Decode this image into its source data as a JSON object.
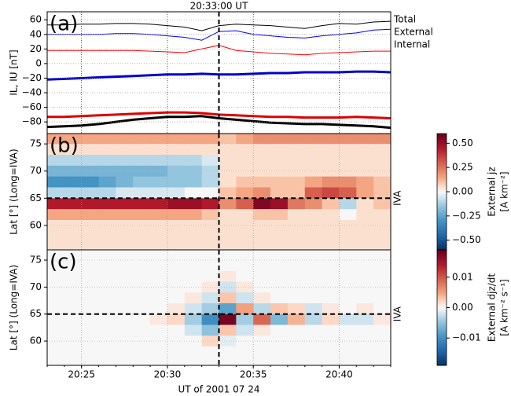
{
  "chart_data": [
    {
      "type": "line",
      "panel_label": "(a)",
      "ylabel": "IL, IU [nT]",
      "vline_label": "20:33:00 UT",
      "vline_x": "20:33:00",
      "xlim": [
        "20:23",
        "20:43"
      ],
      "xticks": [
        "20:25",
        "20:30",
        "20:35",
        "20:40"
      ],
      "show_xtick_labels": false,
      "ylim": [
        -96,
        71
      ],
      "yticks": [
        {
          "value": -80,
          "label": "−80"
        },
        {
          "value": -60,
          "label": "−60"
        },
        {
          "value": -40,
          "label": "−40"
        },
        {
          "value": -20,
          "label": "−20"
        },
        0,
        20,
        40,
        60
      ],
      "grid": true,
      "x": [
        "20:23",
        "20:24",
        "20:25",
        "20:26",
        "20:27",
        "20:28",
        "20:29",
        "20:30",
        "20:31",
        "20:32",
        "20:33",
        "20:34",
        "20:35",
        "20:36",
        "20:37",
        "20:38",
        "20:39",
        "20:40",
        "20:41",
        "20:42",
        "20:43"
      ],
      "series": [
        {
          "name": "Total",
          "color": "#000000",
          "width": 1,
          "values": [
            53,
            53,
            54,
            54,
            55,
            55,
            54,
            52,
            50,
            45,
            52,
            54,
            53,
            52,
            50,
            48,
            52,
            55,
            54,
            57,
            58
          ]
        },
        {
          "name": "External",
          "color": "#0000ff",
          "width": 1,
          "values": [
            40,
            40,
            40,
            40,
            41,
            41,
            40,
            38,
            36,
            32,
            44,
            45,
            40,
            38,
            36,
            35,
            38,
            40,
            42,
            46,
            47
          ]
        },
        {
          "name": "Internal",
          "color": "#ff0000",
          "width": 1,
          "values": [
            18,
            18,
            18,
            18,
            18,
            18,
            17,
            16,
            15,
            20,
            25,
            18,
            16,
            14,
            13,
            12,
            14,
            15,
            16,
            17,
            17
          ]
        },
        {
          "color": "#0000cc",
          "width": 3,
          "values": [
            -22,
            -21,
            -20,
            -19,
            -18,
            -17,
            -16,
            -15,
            -15,
            -14,
            -15,
            -15,
            -14,
            -13,
            -13,
            -12,
            -12,
            -12,
            -11,
            -11,
            -12
          ]
        },
        {
          "color": "#dd0000",
          "width": 3,
          "values": [
            -73,
            -73,
            -72,
            -71,
            -70,
            -69,
            -68,
            -67,
            -67,
            -68,
            -70,
            -71,
            -72,
            -73,
            -73,
            -74,
            -74,
            -74,
            -73,
            -74,
            -75
          ]
        },
        {
          "color": "#000000",
          "width": 3,
          "values": [
            -87,
            -86,
            -85,
            -83,
            -80,
            -77,
            -75,
            -73,
            -73,
            -72,
            -75,
            -77,
            -79,
            -81,
            -82,
            -83,
            -83,
            -84,
            -85,
            -86,
            -88
          ]
        }
      ]
    },
    {
      "type": "heatmap",
      "panel_label": "(b)",
      "ylabel": "Lat [°] (Long=IVA)",
      "vline_x": "20:33:00",
      "hline": {
        "label": "IVA",
        "y": 65
      },
      "xlim": [
        "20:23",
        "20:43"
      ],
      "xticks": [
        "20:25",
        "20:30",
        "20:35",
        "20:40"
      ],
      "show_xtick_labels": false,
      "ylim": [
        55.5,
        76.9
      ],
      "yticks": [
        60,
        65,
        70,
        75
      ],
      "grid": true,
      "colormap": "RdBu_r",
      "x": [
        "20:23",
        "20:24",
        "20:25",
        "20:26",
        "20:27",
        "20:28",
        "20:29",
        "20:30",
        "20:31",
        "20:32",
        "20:33",
        "20:34",
        "20:35",
        "20:36",
        "20:37",
        "20:38",
        "20:39",
        "20:40",
        "20:41",
        "20:42"
      ],
      "y": [
        76,
        74,
        72,
        70,
        68,
        66,
        64,
        62,
        60,
        58,
        56
      ],
      "z": [
        [
          0.15,
          0.15,
          0.15,
          0.15,
          0.15,
          0.15,
          0.15,
          0.15,
          0.15,
          0.15,
          0.1,
          0.15,
          0.2,
          0.2,
          0.2,
          0.2,
          0.2,
          0.2,
          0.2,
          0.2
        ],
        [
          0.05,
          0.05,
          0.05,
          0.05,
          0.05,
          0.05,
          0.05,
          0.05,
          0.05,
          0.05,
          0.05,
          0.05,
          0.05,
          0.05,
          0.05,
          0.05,
          0.05,
          0.05,
          0.05,
          0.05
        ],
        [
          -0.1,
          -0.1,
          -0.1,
          -0.1,
          -0.1,
          -0.1,
          -0.1,
          -0.1,
          -0.1,
          -0.05,
          0.05,
          0.05,
          0.05,
          0.05,
          0.05,
          0.05,
          0.05,
          0.05,
          0.05,
          0.05
        ],
        [
          -0.2,
          -0.2,
          -0.2,
          -0.2,
          -0.2,
          -0.2,
          -0.2,
          -0.15,
          -0.15,
          -0.1,
          0.05,
          0.05,
          0.05,
          0.05,
          0.05,
          0.05,
          0.05,
          0.05,
          0.05,
          0.05
        ],
        [
          -0.3,
          -0.3,
          -0.3,
          -0.25,
          -0.2,
          -0.15,
          -0.15,
          -0.15,
          -0.15,
          -0.1,
          0.05,
          0.1,
          0.1,
          0.1,
          0.1,
          0.15,
          0.2,
          0.2,
          0.15,
          0.1
        ],
        [
          -0.1,
          -0.1,
          -0.1,
          -0.1,
          -0.05,
          -0.05,
          -0.05,
          -0.05,
          0,
          0,
          0.1,
          0.15,
          0.2,
          0.1,
          0.1,
          0.3,
          0.35,
          0.3,
          0.15,
          0.1
        ],
        [
          0.45,
          0.45,
          0.45,
          0.45,
          0.45,
          0.45,
          0.45,
          0.5,
          0.5,
          0.45,
          0.2,
          0.3,
          0.55,
          0.5,
          0.25,
          0.2,
          0.1,
          -0.1,
          0.05,
          0.1
        ],
        [
          0.15,
          0.15,
          0.15,
          0.15,
          0.15,
          0.15,
          0.15,
          0.15,
          0.15,
          0.1,
          0.05,
          0.05,
          0.1,
          0.1,
          0.05,
          0.05,
          0.05,
          0,
          0.05,
          0.05
        ],
        [
          0.05,
          0.05,
          0.05,
          0.05,
          0.05,
          0.05,
          0.05,
          0.05,
          0.05,
          0.05,
          0.05,
          0.05,
          0.05,
          0.05,
          0.05,
          0.05,
          0.05,
          0.05,
          0.05,
          0.05
        ],
        [
          0.05,
          0.05,
          0.05,
          0.05,
          0.05,
          0.05,
          0.05,
          0.05,
          0.05,
          0.05,
          0.05,
          0.05,
          0.05,
          0.05,
          0.05,
          0.05,
          0.05,
          0.05,
          0.05,
          0.05
        ],
        [
          0.05,
          0.05,
          0.05,
          0.05,
          0.05,
          0.05,
          0.05,
          0.05,
          0.05,
          0.05,
          0.05,
          0.05,
          0.05,
          0.05,
          0.05,
          0.05,
          0.05,
          0.05,
          0.05,
          0.05
        ]
      ],
      "zlim": [
        -0.6,
        0.6
      ],
      "zticks": [
        {
          "value": 0.5,
          "label": "0.50"
        },
        {
          "value": 0.25,
          "label": "0.25"
        },
        {
          "value": 0,
          "label": "0.00"
        },
        {
          "value": -0.25,
          "label": "−0.25"
        },
        {
          "value": -0.5,
          "label": "−0.50"
        }
      ],
      "colorbar_label": [
        "External jz",
        "[A km⁻²]"
      ]
    },
    {
      "type": "heatmap",
      "panel_label": "(c)",
      "ylabel": "Lat [°] (Long=IVA)",
      "xlabel": "UT of 2001 07 24",
      "vline_x": "20:33:00",
      "hline": {
        "label": "IVA",
        "y": 65
      },
      "xlim": [
        "20:23",
        "20:43"
      ],
      "xticks": [
        "20:25",
        "20:30",
        "20:35",
        "20:40"
      ],
      "show_xtick_labels": true,
      "ylim": [
        55.5,
        76.9
      ],
      "yticks": [
        60,
        65,
        70,
        75
      ],
      "grid": true,
      "colormap": "RdBu_r",
      "x": [
        "20:23",
        "20:24",
        "20:25",
        "20:26",
        "20:27",
        "20:28",
        "20:29",
        "20:30",
        "20:31",
        "20:32",
        "20:33",
        "20:34",
        "20:35",
        "20:36",
        "20:37",
        "20:38",
        "20:39",
        "20:40",
        "20:41",
        "20:42"
      ],
      "y": [
        76,
        74,
        72,
        70,
        68,
        66,
        64,
        62,
        60,
        58,
        56
      ],
      "z": [
        [
          0,
          0,
          0,
          0,
          0,
          0,
          0,
          0,
          0,
          0,
          0,
          0,
          0,
          0,
          0,
          0,
          0,
          0,
          0,
          0
        ],
        [
          0,
          0,
          0,
          0,
          0,
          0,
          0,
          0,
          0,
          0,
          0,
          0,
          0,
          0,
          0,
          0,
          0,
          0,
          0,
          0
        ],
        [
          0,
          0,
          0,
          0,
          0,
          0,
          0,
          0,
          0,
          0,
          0.001,
          0,
          0,
          0,
          0,
          0,
          0,
          0,
          0,
          0
        ],
        [
          0,
          0,
          0,
          0,
          0,
          0,
          0,
          0,
          0,
          0.001,
          -0.002,
          0.001,
          0,
          0,
          0,
          0,
          0,
          0,
          0,
          0
        ],
        [
          0,
          0,
          0,
          0,
          0,
          0,
          0,
          0,
          0.001,
          -0.002,
          0.003,
          -0.002,
          0.001,
          0,
          0,
          0,
          0,
          0,
          0,
          0
        ],
        [
          0,
          0,
          0,
          0,
          0,
          0,
          0,
          0.001,
          -0.002,
          -0.004,
          -0.008,
          0.005,
          -0.003,
          0.003,
          0.002,
          -0.002,
          0.001,
          0,
          0.001,
          0
        ],
        [
          0,
          0,
          0,
          0,
          0,
          0,
          0.001,
          0.002,
          -0.004,
          -0.01,
          0.018,
          -0.004,
          0.009,
          -0.006,
          0.004,
          -0.003,
          0.002,
          -0.002,
          -0.002,
          0.001
        ],
        [
          0,
          0,
          0,
          0,
          0,
          0,
          0,
          0,
          -0.002,
          -0.005,
          0.003,
          -0.002,
          0.001,
          0,
          0,
          0,
          0,
          0,
          0,
          0
        ],
        [
          0,
          0,
          0,
          0,
          0,
          0,
          0,
          0,
          0,
          0.002,
          -0.001,
          0,
          0,
          0,
          0,
          0,
          0,
          0,
          0,
          0
        ],
        [
          0,
          0,
          0,
          0,
          0,
          0,
          0,
          0,
          0,
          0,
          0,
          0,
          0,
          0,
          0,
          0,
          0,
          0,
          0,
          0
        ],
        [
          0,
          0,
          0,
          0,
          0,
          0,
          0,
          0,
          0,
          0,
          0,
          0,
          0,
          0,
          0,
          0,
          0,
          0,
          0,
          0
        ]
      ],
      "zlim": [
        -0.019,
        0.019
      ],
      "zticks": [
        {
          "value": 0.01,
          "label": "0.01"
        },
        {
          "value": 0,
          "label": "0.00"
        },
        {
          "value": -0.01,
          "label": "−0.01"
        }
      ],
      "colorbar_label": [
        "External djz/dt",
        "[A km⁻² s⁻¹]"
      ]
    }
  ]
}
